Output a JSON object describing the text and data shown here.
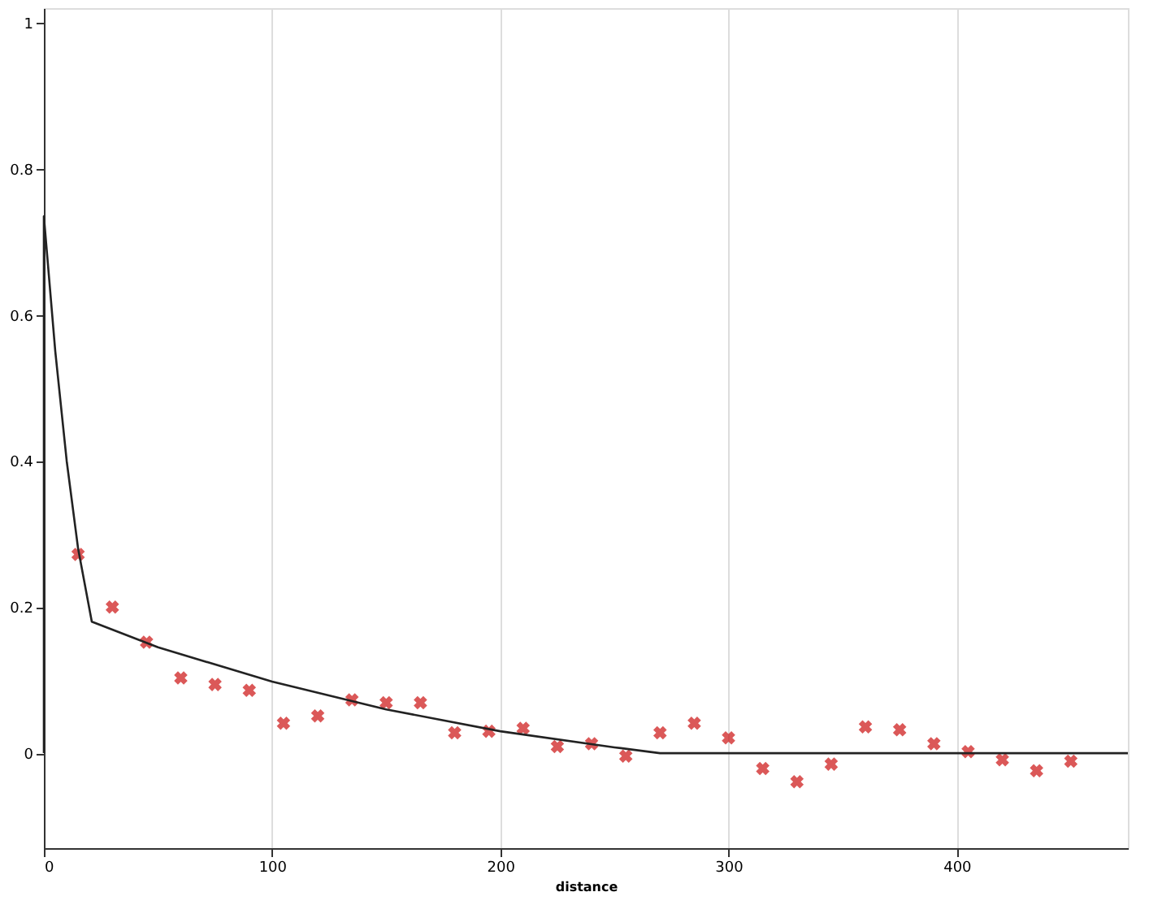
{
  "chart_data": {
    "type": "scatter",
    "xlabel": "distance",
    "xlim": [
      0,
      475
    ],
    "ylim": [
      -0.13,
      1.02
    ],
    "xticks": [
      0,
      100,
      200,
      300,
      400
    ],
    "yticks": [
      0,
      0.2,
      0.4,
      0.6,
      0.8,
      1
    ],
    "grid": "x",
    "legend": false,
    "series": [
      {
        "type": "scatter",
        "color": "#cc1111",
        "marker": "cross",
        "x": [
          15,
          30,
          45,
          60,
          75,
          90,
          105,
          120,
          135,
          150,
          165,
          180,
          195,
          210,
          225,
          240,
          255,
          270,
          285,
          300,
          315,
          330,
          345,
          360,
          375,
          390,
          405,
          420,
          435,
          450
        ],
        "values": [
          0.272,
          0.2,
          0.152,
          0.103,
          0.094,
          0.086,
          0.041,
          0.051,
          0.073,
          0.069,
          0.069,
          0.028,
          0.03,
          0.034,
          0.009,
          0.013,
          -0.004,
          0.028,
          0.041,
          0.021,
          -0.021,
          -0.039,
          -0.015,
          0.036,
          0.032,
          0.013,
          0.002,
          -0.009,
          -0.024,
          -0.011
        ]
      },
      {
        "type": "line",
        "color": "#222222",
        "marker": "none",
        "line_style": "solid",
        "x": [
          0,
          0,
          5,
          10,
          15,
          21,
          50,
          100,
          150,
          200,
          250,
          270,
          475
        ],
        "values": [
          0,
          0.735,
          0.55,
          0.4,
          0.28,
          0.18,
          0.145,
          0.098,
          0.06,
          0.03,
          0.008,
          0,
          0
        ]
      }
    ]
  }
}
